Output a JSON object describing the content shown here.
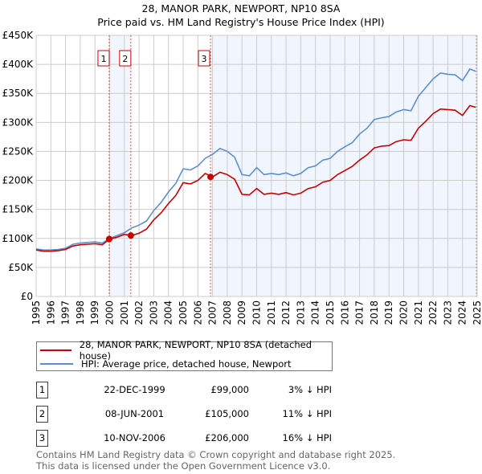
{
  "chart_data": {
    "type": "line",
    "title": "28, MANOR PARK, NEWPORT, NP10 8SA",
    "subtitle": "Price paid vs. HM Land Registry's House Price Index (HPI)",
    "xlim": [
      1995,
      2025
    ],
    "ylim": [
      0,
      450000
    ],
    "grid": true,
    "x_ticks": [
      "1995",
      "1996",
      "1997",
      "1998",
      "1999",
      "2000",
      "2001",
      "2002",
      "2003",
      "2004",
      "2005",
      "2006",
      "2007",
      "2008",
      "2009",
      "2010",
      "2011",
      "2012",
      "2013",
      "2014",
      "2015",
      "2016",
      "2017",
      "2018",
      "2019",
      "2020",
      "2021",
      "2022",
      "2023",
      "2024",
      "2025"
    ],
    "y_ticks": [
      {
        "v": 0,
        "label": "£0"
      },
      {
        "v": 50000,
        "label": "£50K"
      },
      {
        "v": 100000,
        "label": "£100K"
      },
      {
        "v": 150000,
        "label": "£150K"
      },
      {
        "v": 200000,
        "label": "£200K"
      },
      {
        "v": 250000,
        "label": "£250K"
      },
      {
        "v": 300000,
        "label": "£300K"
      },
      {
        "v": 350000,
        "label": "£350K"
      },
      {
        "v": 400000,
        "label": "£400K"
      },
      {
        "v": 450000,
        "label": "£450K"
      }
    ],
    "series": [
      {
        "name": "28, MANOR PARK, NEWPORT, NP10 8SA (detached house)",
        "color": "#cc0000",
        "values_k": [
          [
            1995,
            80
          ],
          [
            1995.5,
            78
          ],
          [
            1996,
            78
          ],
          [
            1996.5,
            79
          ],
          [
            1997,
            81
          ],
          [
            1997.5,
            87
          ],
          [
            1998,
            89
          ],
          [
            1998.5,
            90
          ],
          [
            1999,
            91
          ],
          [
            1999.5,
            89
          ],
          [
            2000,
            99
          ],
          [
            2000.5,
            102
          ],
          [
            2001,
            107
          ],
          [
            2001.5,
            105
          ],
          [
            2002,
            109
          ],
          [
            2002.5,
            116
          ],
          [
            2003,
            132
          ],
          [
            2003.5,
            144
          ],
          [
            2004,
            160
          ],
          [
            2004.5,
            174
          ],
          [
            2005,
            196
          ],
          [
            2005.5,
            194
          ],
          [
            2006,
            200
          ],
          [
            2006.5,
            212
          ],
          [
            2007,
            206
          ],
          [
            2007.5,
            214
          ],
          [
            2008,
            210
          ],
          [
            2008.5,
            202
          ],
          [
            2009,
            176
          ],
          [
            2009.5,
            175
          ],
          [
            2010,
            186
          ],
          [
            2010.5,
            176
          ],
          [
            2011,
            178
          ],
          [
            2011.5,
            176
          ],
          [
            2012,
            179
          ],
          [
            2012.5,
            175
          ],
          [
            2013,
            178
          ],
          [
            2013.5,
            186
          ],
          [
            2014,
            189
          ],
          [
            2014.5,
            197
          ],
          [
            2015,
            200
          ],
          [
            2015.5,
            210
          ],
          [
            2016,
            217
          ],
          [
            2016.5,
            224
          ],
          [
            2017,
            235
          ],
          [
            2017.5,
            244
          ],
          [
            2018,
            256
          ],
          [
            2018.5,
            259
          ],
          [
            2019,
            260
          ],
          [
            2019.5,
            267
          ],
          [
            2020,
            270
          ],
          [
            2020.5,
            269
          ],
          [
            2021,
            290
          ],
          [
            2021.5,
            302
          ],
          [
            2022,
            315
          ],
          [
            2022.5,
            323
          ],
          [
            2023,
            322
          ],
          [
            2023.5,
            321
          ],
          [
            2024,
            312
          ],
          [
            2024.5,
            329
          ],
          [
            2024.9,
            326
          ]
        ]
      },
      {
        "name": "HPI: Average price, detached house, Newport",
        "color": "#5b8fd4",
        "values_k": [
          [
            1995,
            82
          ],
          [
            1995.5,
            80
          ],
          [
            1996,
            80
          ],
          [
            1996.5,
            81
          ],
          [
            1997,
            83
          ],
          [
            1997.5,
            90
          ],
          [
            1998,
            92
          ],
          [
            1998.5,
            93
          ],
          [
            1999,
            94
          ],
          [
            1999.5,
            92
          ],
          [
            2000,
            100
          ],
          [
            2000.5,
            105
          ],
          [
            2001,
            110
          ],
          [
            2001.5,
            118
          ],
          [
            2002,
            123
          ],
          [
            2002.5,
            130
          ],
          [
            2003,
            148
          ],
          [
            2003.5,
            162
          ],
          [
            2004,
            180
          ],
          [
            2004.5,
            195
          ],
          [
            2005,
            220
          ],
          [
            2005.5,
            218
          ],
          [
            2006,
            225
          ],
          [
            2006.5,
            238
          ],
          [
            2007,
            245
          ],
          [
            2007.5,
            255
          ],
          [
            2008,
            250
          ],
          [
            2008.5,
            240
          ],
          [
            2009,
            210
          ],
          [
            2009.5,
            208
          ],
          [
            2010,
            222
          ],
          [
            2010.5,
            210
          ],
          [
            2011,
            212
          ],
          [
            2011.5,
            210
          ],
          [
            2012,
            213
          ],
          [
            2012.5,
            208
          ],
          [
            2013,
            212
          ],
          [
            2013.5,
            222
          ],
          [
            2014,
            225
          ],
          [
            2014.5,
            235
          ],
          [
            2015,
            238
          ],
          [
            2015.5,
            250
          ],
          [
            2016,
            258
          ],
          [
            2016.5,
            265
          ],
          [
            2017,
            280
          ],
          [
            2017.5,
            290
          ],
          [
            2018,
            305
          ],
          [
            2018.5,
            308
          ],
          [
            2019,
            310
          ],
          [
            2019.5,
            318
          ],
          [
            2020,
            322
          ],
          [
            2020.5,
            320
          ],
          [
            2021,
            345
          ],
          [
            2021.5,
            360
          ],
          [
            2022,
            375
          ],
          [
            2022.5,
            385
          ],
          [
            2023,
            383
          ],
          [
            2023.5,
            382
          ],
          [
            2024,
            372
          ],
          [
            2024.5,
            392
          ],
          [
            2024.9,
            388
          ]
        ]
      }
    ],
    "sales": [
      {
        "id": "1",
        "year": 1999.97,
        "value": 99000,
        "date": "22-DEC-1999",
        "price": "£99,000",
        "hpi": "3% ↓ HPI"
      },
      {
        "id": "2",
        "year": 2001.44,
        "value": 105000,
        "date": "08-JUN-2001",
        "price": "£105,000",
        "hpi": "11% ↓ HPI"
      },
      {
        "id": "3",
        "year": 2006.86,
        "value": 206000,
        "date": "10-NOV-2006",
        "price": "£206,000",
        "hpi": "16% ↓ HPI"
      }
    ]
  },
  "legend": {
    "red": "28, MANOR PARK, NEWPORT, NP10 8SA (detached house)",
    "blue": "HPI: Average price, detached house, Newport"
  },
  "footer": {
    "line1": "Contains HM Land Registry data © Crown copyright and database right 2025.",
    "line2": "This data is licensed under the Open Government Licence v3.0."
  }
}
